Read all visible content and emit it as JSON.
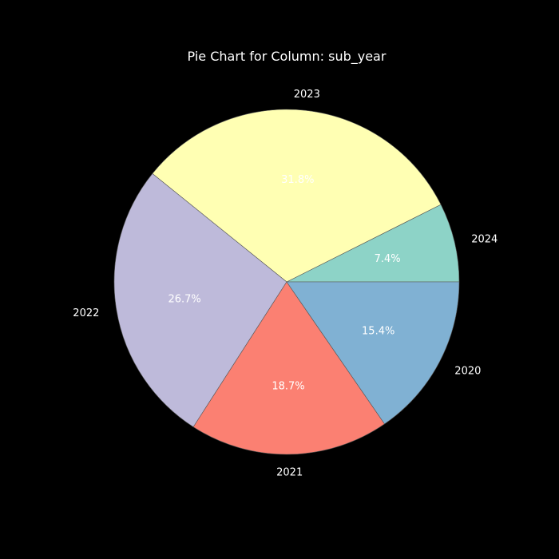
{
  "chart_data": {
    "type": "pie",
    "title": "Pie Chart for Column: sub_year",
    "categories": [
      "2024",
      "2023",
      "2022",
      "2021",
      "2020"
    ],
    "values": [
      7.4,
      31.8,
      26.7,
      18.7,
      15.4
    ],
    "value_labels": [
      "7.4%",
      "31.8%",
      "26.7%",
      "18.7%",
      "15.4%"
    ],
    "colors": [
      "#8dd3c7",
      "#ffffb3",
      "#bebada",
      "#fb8072",
      "#80b1d3"
    ],
    "start_angle_deg": 0,
    "direction": "counterclockwise",
    "legend": "none"
  }
}
